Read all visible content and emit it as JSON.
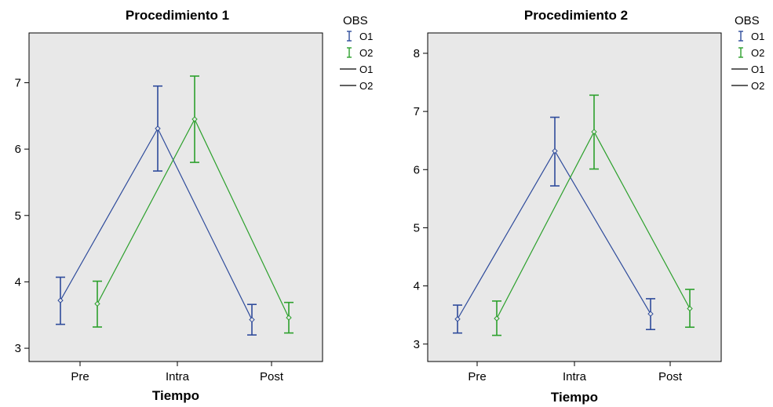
{
  "chart_data": [
    {
      "type": "line",
      "title": "Procedimiento 1",
      "xlabel": "Tiempo",
      "ylabel": "",
      "categories": [
        "Pre",
        "Intra",
        "Post"
      ],
      "yticks": [
        3,
        4,
        5,
        6,
        7
      ],
      "ylim": [
        2.8,
        7.75
      ],
      "grid": false,
      "legend_position": "right",
      "legend": {
        "title": "OBS",
        "entries": [
          {
            "label": "O1",
            "symbol": "errorbar",
            "series": 0
          },
          {
            "label": "O2",
            "symbol": "errorbar",
            "series": 1
          },
          {
            "label": "O1",
            "symbol": "line",
            "series": 0
          },
          {
            "label": "O2",
            "symbol": "line",
            "series": 1
          }
        ]
      },
      "series": [
        {
          "name": "O1",
          "color": "#2e4b9b",
          "values": [
            3.72,
            6.31,
            3.43
          ],
          "lower": [
            3.36,
            5.67,
            3.2
          ],
          "upper": [
            4.07,
            6.95,
            3.66
          ]
        },
        {
          "name": "O2",
          "color": "#2ca02c",
          "values": [
            3.67,
            6.45,
            3.46
          ],
          "lower": [
            3.32,
            5.8,
            3.23
          ],
          "upper": [
            4.01,
            7.1,
            3.69
          ]
        }
      ]
    },
    {
      "type": "line",
      "title": "Procedimiento 2",
      "xlabel": "Tiempo",
      "ylabel": "",
      "categories": [
        "Pre",
        "Intra",
        "Post"
      ],
      "yticks": [
        3,
        4,
        5,
        6,
        7,
        8
      ],
      "ylim": [
        2.7,
        8.35
      ],
      "grid": false,
      "legend_position": "right",
      "legend": {
        "title": "OBS",
        "entries": [
          {
            "label": "O1",
            "symbol": "errorbar",
            "series": 0
          },
          {
            "label": "O2",
            "symbol": "errorbar",
            "series": 1
          },
          {
            "label": "O1",
            "symbol": "line",
            "series": 0
          },
          {
            "label": "O2",
            "symbol": "line",
            "series": 1
          }
        ]
      },
      "series": [
        {
          "name": "O1",
          "color": "#2e4b9b",
          "values": [
            3.43,
            6.32,
            3.52
          ],
          "lower": [
            3.19,
            5.72,
            3.25
          ],
          "upper": [
            3.67,
            6.9,
            3.78
          ]
        },
        {
          "name": "O2",
          "color": "#2ca02c",
          "values": [
            3.44,
            6.65,
            3.61
          ],
          "lower": [
            3.15,
            6.01,
            3.29
          ],
          "upper": [
            3.74,
            7.28,
            3.94
          ]
        }
      ]
    }
  ],
  "style": {
    "plot_background": "#e8e8e8",
    "axis_color": "#000000",
    "legend_line_color": "#000000"
  }
}
